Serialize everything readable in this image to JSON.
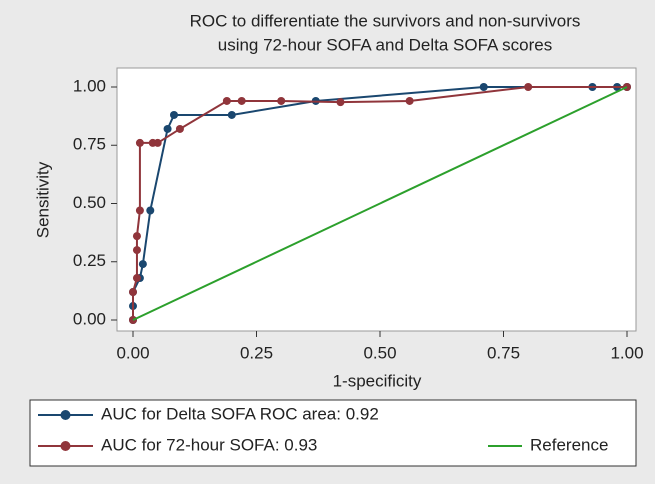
{
  "chart_data": {
    "type": "line",
    "title": [
      "ROC to differentiate the survivors and non-survivors",
      "using 72-hour SOFA and Delta SOFA scores"
    ],
    "x_label": "1-specificity",
    "y_label": "Sensitivity",
    "xlim": [
      0,
      1
    ],
    "ylim": [
      0,
      1
    ],
    "xticks": [
      {
        "value": 0,
        "label": "0.00"
      },
      {
        "value": 0.25,
        "label": "0.25"
      },
      {
        "value": 0.5,
        "label": "0.50"
      },
      {
        "value": 0.75,
        "label": "0.75"
      },
      {
        "value": 1,
        "label": "1.00"
      }
    ],
    "yticks": [
      {
        "value": 0,
        "label": "0.00"
      },
      {
        "value": 0.25,
        "label": "0.25"
      },
      {
        "value": 0.5,
        "label": "0.50"
      },
      {
        "value": 0.75,
        "label": "0.75"
      },
      {
        "value": 1,
        "label": "1.00"
      }
    ],
    "series": [
      {
        "name": "AUC for Delta SOFA ROC area: 0.92",
        "color": "#1a476f",
        "markers": true,
        "x": [
          0,
          0,
          0,
          0.014,
          0.02,
          0.035,
          0.07,
          0.083,
          0.2,
          0.37,
          0.71,
          0.93,
          0.98,
          1
        ],
        "values": [
          0,
          0.06,
          0.12,
          0.18,
          0.24,
          0.47,
          0.82,
          0.88,
          0.88,
          0.94,
          1,
          1,
          1,
          1
        ]
      },
      {
        "name": "AUC for 72-hour SOFA: 0.93",
        "color": "#90353b",
        "markers": true,
        "x": [
          0,
          0,
          0.008,
          0.008,
          0.008,
          0.014,
          0.014,
          0.04,
          0.05,
          0.095,
          0.19,
          0.22,
          0.3,
          0.42,
          0.56,
          0.8,
          1
        ],
        "values": [
          0,
          0.12,
          0.18,
          0.3,
          0.36,
          0.47,
          0.76,
          0.76,
          0.76,
          0.82,
          0.94,
          0.94,
          0.94,
          0.935,
          0.94,
          1,
          1
        ]
      },
      {
        "name": "Reference",
        "color": "#2ca02c",
        "markers": false,
        "x": [
          0,
          1
        ],
        "values": [
          0,
          1
        ]
      }
    ]
  }
}
